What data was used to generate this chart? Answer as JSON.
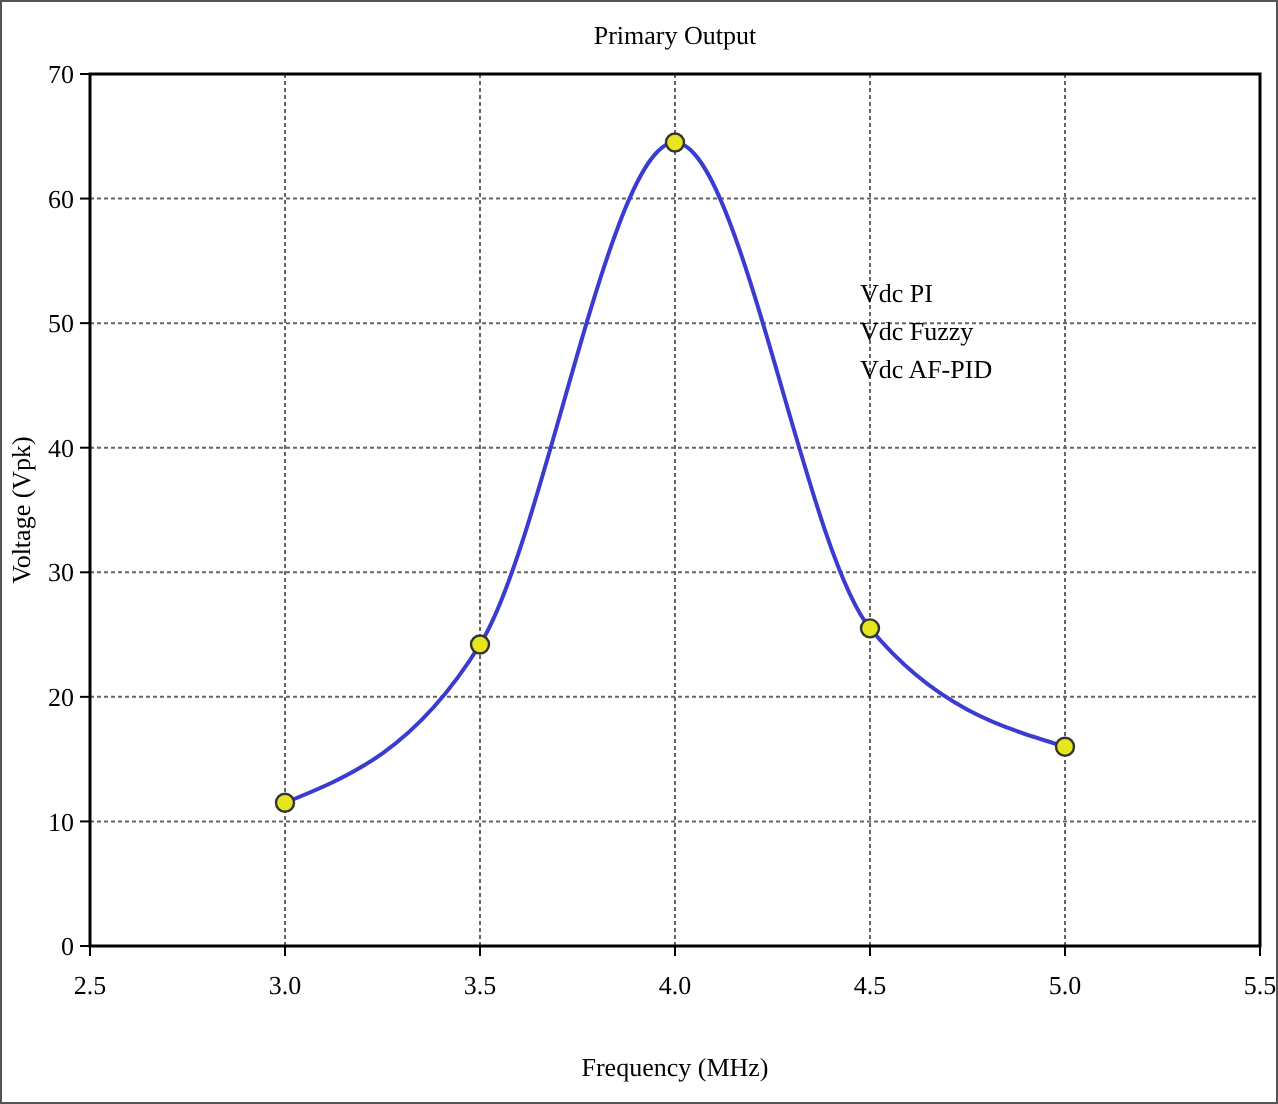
{
  "chart_data": {
    "type": "line",
    "title": "Primary Output",
    "xlabel": "Frequency (MHz)",
    "ylabel": "Voltage (Vpk)",
    "x": [
      3.0,
      3.5,
      4.0,
      4.5,
      5.0
    ],
    "series": [
      {
        "color": "#3b3bd0",
        "values": [
          11.5,
          24.2,
          64.5,
          25.5,
          16
        ]
      }
    ],
    "xlim": [
      2.5,
      5.5
    ],
    "xticks": [
      2.5,
      {
        "value": 3,
        "label": "3.0"
      },
      3.5,
      {
        "value": 4,
        "label": "4.0"
      },
      4.5,
      {
        "value": 5,
        "label": "5.0"
      },
      5.5
    ],
    "ylim": [
      0,
      70
    ],
    "yticks": [
      0,
      10,
      20,
      30,
      40,
      50,
      60,
      70
    ],
    "grid": true,
    "marker": "circle",
    "line_style": "solid",
    "annotations": [
      "Vdc PI",
      "Vdc Fuzzy",
      "Vdc AF-PID"
    ]
  }
}
